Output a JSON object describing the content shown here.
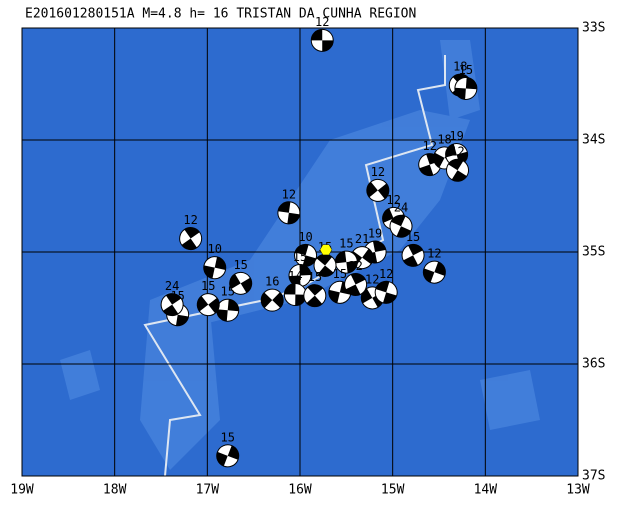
{
  "chart_data": {
    "type": "map",
    "title": "E201601280151A M=4.8 h= 16 TRISTAN DA CUNHA REGION",
    "xlim": [
      -19,
      -13
    ],
    "ylim": [
      -37,
      -33
    ],
    "grid": true,
    "xticks": [
      {
        "value": -19,
        "label": "19W"
      },
      {
        "value": -18,
        "label": "18W"
      },
      {
        "value": -17,
        "label": "17W"
      },
      {
        "value": -16,
        "label": "16W"
      },
      {
        "value": -15,
        "label": "15W"
      },
      {
        "value": -14,
        "label": "14W"
      },
      {
        "value": -13,
        "label": "13W"
      }
    ],
    "yticks": [
      {
        "value": -33,
        "label": "33S"
      },
      {
        "value": -34,
        "label": "34S"
      },
      {
        "value": -35,
        "label": "35S"
      },
      {
        "value": -36,
        "label": "36S"
      },
      {
        "value": -37,
        "label": "37S"
      }
    ],
    "epicenter": {
      "lon": -15.72,
      "lat": -34.98,
      "color": "#ffff00"
    },
    "events": [
      {
        "label": "12",
        "lon": -15.76,
        "lat": -33.11
      },
      {
        "label": "18",
        "lon": -14.27,
        "lat": -33.51
      },
      {
        "label": "15",
        "lon": -14.21,
        "lat": -33.54
      },
      {
        "label": "12",
        "lon": -15.16,
        "lat": -34.45
      },
      {
        "label": "12",
        "lon": -16.12,
        "lat": -34.65
      },
      {
        "label": "12",
        "lon": -17.18,
        "lat": -34.88
      },
      {
        "label": "10",
        "lon": -16.92,
        "lat": -35.14
      },
      {
        "label": "15",
        "lon": -16.64,
        "lat": -35.28
      },
      {
        "label": "10",
        "lon": -15.94,
        "lat": -35.03
      },
      {
        "label": "15",
        "lon": -14.78,
        "lat": -35.03
      },
      {
        "label": "12",
        "lon": -14.55,
        "lat": -35.18
      },
      {
        "label": "12",
        "lon": -14.99,
        "lat": -34.7
      },
      {
        "label": "24",
        "lon": -14.91,
        "lat": -34.77
      },
      {
        "label": "12",
        "lon": -14.6,
        "lat": -34.22
      },
      {
        "label": "18",
        "lon": -14.44,
        "lat": -34.16
      },
      {
        "label": "19",
        "lon": -14.31,
        "lat": -34.13
      },
      {
        "label": "12",
        "lon": -14.3,
        "lat": -34.27
      },
      {
        "label": "19",
        "lon": -15.19,
        "lat": -35.0
      },
      {
        "label": "21",
        "lon": -15.33,
        "lat": -35.05
      },
      {
        "label": "15",
        "lon": -15.5,
        "lat": -35.09
      },
      {
        "label": "15",
        "lon": -15.73,
        "lat": -35.12
      },
      {
        "label": "15",
        "lon": -16.0,
        "lat": -35.21
      },
      {
        "label": "16",
        "lon": -16.3,
        "lat": -35.43
      },
      {
        "label": "14",
        "lon": -16.05,
        "lat": -35.38
      },
      {
        "label": "15",
        "lon": -15.84,
        "lat": -35.39
      },
      {
        "label": "15",
        "lon": -16.78,
        "lat": -35.52
      },
      {
        "label": "15",
        "lon": -16.99,
        "lat": -35.47
      },
      {
        "label": "15",
        "lon": -17.32,
        "lat": -35.56
      },
      {
        "label": "24",
        "lon": -17.38,
        "lat": -35.47
      },
      {
        "label": "15",
        "lon": -15.57,
        "lat": -35.36
      },
      {
        "label": "12",
        "lon": -15.22,
        "lat": -35.41
      },
      {
        "label": "12",
        "lon": -15.07,
        "lat": -35.36
      },
      {
        "label": "22",
        "lon": -15.4,
        "lat": -35.29
      },
      {
        "label": "15",
        "lon": -16.78,
        "lat": -36.82
      }
    ]
  }
}
